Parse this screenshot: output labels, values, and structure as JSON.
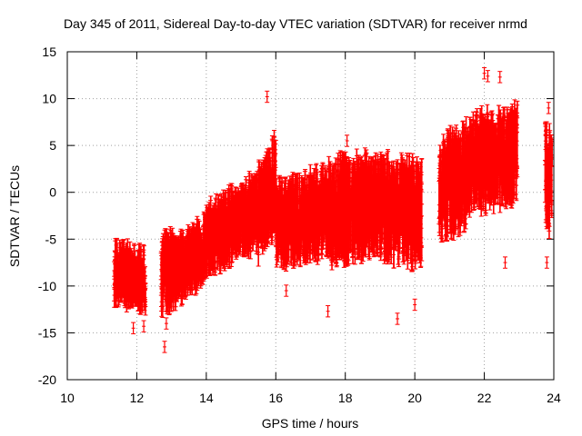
{
  "chart_data": {
    "type": "scatter",
    "title": "Day 345 of 2011, Sidereal Day-to-day VTEC variation (SDTVAR) for receiver nrmd",
    "xlabel": "GPS time / hours",
    "ylabel": "SDTVAR / TECUs",
    "xlim": [
      10,
      24
    ],
    "ylim": [
      -20,
      15
    ],
    "x_ticks": [
      "10",
      "12",
      "14",
      "16",
      "18",
      "20",
      "22",
      "24"
    ],
    "y_ticks": [
      "-20",
      "-15",
      "-10",
      "-5",
      "0",
      "5",
      "10",
      "15"
    ],
    "grid": true,
    "marker": "errorbar-plus",
    "series_color": "#ff0000",
    "segments": [
      {
        "start": 11.35,
        "end": 12.25,
        "mean_start": -8.5,
        "mean_end": -9.5,
        "spread": 2.5
      },
      {
        "start": 12.7,
        "end": 13.05,
        "mean_start": -9.0,
        "mean_end": -8.0,
        "spread": 3.5
      },
      {
        "start": 13.05,
        "end": 14.0,
        "mean_start": -8.5,
        "mean_end": -6.0,
        "spread": 2.8
      },
      {
        "start": 14.0,
        "end": 15.5,
        "mean_start": -5.0,
        "mean_end": -2.0,
        "spread": 3.2
      },
      {
        "start": 15.5,
        "end": 16.0,
        "mean_start": -2.0,
        "mean_end": 1.0,
        "spread": 4.5
      },
      {
        "start": 16.0,
        "end": 17.5,
        "mean_start": -3.5,
        "mean_end": -2.0,
        "spread": 4.0
      },
      {
        "start": 17.5,
        "end": 19.0,
        "mean_start": -2.0,
        "mean_end": -1.5,
        "spread": 5.0
      },
      {
        "start": 19.0,
        "end": 20.2,
        "mean_start": -1.5,
        "mean_end": -2.5,
        "spread": 5.0
      },
      {
        "start": 20.7,
        "end": 21.5,
        "mean_start": 0.0,
        "mean_end": 2.0,
        "spread": 5.0
      },
      {
        "start": 21.5,
        "end": 22.95,
        "mean_start": 3.0,
        "mean_end": 4.0,
        "spread": 4.5
      },
      {
        "start": 23.75,
        "end": 23.95,
        "mean_start": 2.0,
        "mean_end": 1.0,
        "spread": 5.0
      }
    ],
    "points": [
      {
        "x": 11.9,
        "y": -14.5
      },
      {
        "x": 12.8,
        "y": -16.5
      },
      {
        "x": 12.85,
        "y": -14.0
      },
      {
        "x": 12.2,
        "y": -14.3
      },
      {
        "x": 15.75,
        "y": 10.2
      },
      {
        "x": 16.3,
        "y": -10.5
      },
      {
        "x": 17.5,
        "y": -12.7
      },
      {
        "x": 18.05,
        "y": 5.5
      },
      {
        "x": 19.5,
        "y": -13.5
      },
      {
        "x": 20.0,
        "y": -12.0
      },
      {
        "x": 22.0,
        "y": 12.7
      },
      {
        "x": 22.45,
        "y": 12.3
      },
      {
        "x": 22.1,
        "y": 12.4
      },
      {
        "x": 22.6,
        "y": -7.5
      },
      {
        "x": 23.85,
        "y": 9.0
      },
      {
        "x": 23.8,
        "y": -7.5
      }
    ]
  }
}
